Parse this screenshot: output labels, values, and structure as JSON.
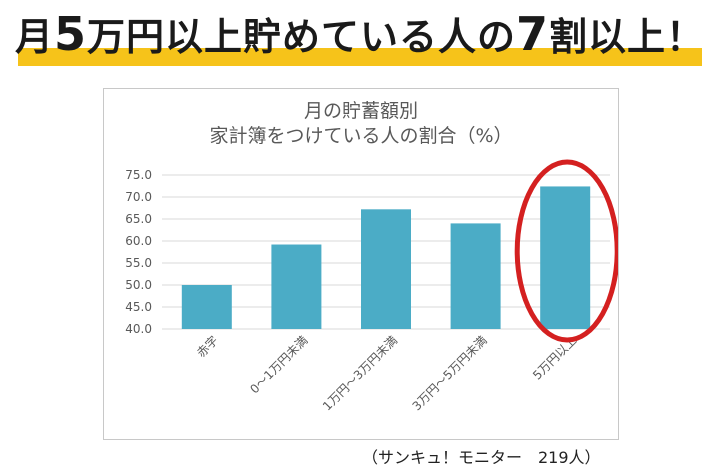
{
  "headline": {
    "part1": "月",
    "num1": "5",
    "part2": "万円以上貯めている人の",
    "num2": "7",
    "part3": "割以上！"
  },
  "chart_data": {
    "type": "bar",
    "title_line1": "月の貯蓄額別",
    "title_line2": "家計簿をつけている人の割合（%）",
    "categories": [
      "赤字",
      "0～1万円未満",
      "1万円～3万円未満",
      "3万円～5万円未満",
      "5万円以上"
    ],
    "values": [
      50.0,
      59.2,
      67.2,
      64.0,
      72.4
    ],
    "ylim": [
      40,
      75
    ],
    "yticks": [
      "40.0",
      "45.0",
      "50.0",
      "55.0",
      "60.0",
      "65.0",
      "70.0",
      "75.0"
    ],
    "grid": true,
    "bar_color": "#4bacc6",
    "highlight_color": "#d42020",
    "highlight_category": "5万円以上"
  },
  "footnote": "（サンキュ！モニター　219人）"
}
